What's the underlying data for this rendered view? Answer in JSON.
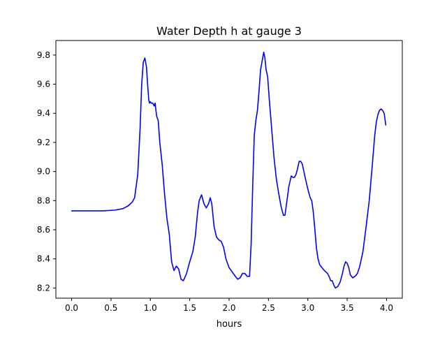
{
  "chart_data": {
    "type": "line",
    "title": "Water Depth h at gauge 3",
    "xlabel": "hours",
    "ylabel": "",
    "xlim": [
      -0.2,
      4.2
    ],
    "ylim": [
      8.13,
      9.9
    ],
    "x_ticks": [
      0.0,
      0.5,
      1.0,
      1.5,
      2.0,
      2.5,
      3.0,
      3.5,
      4.0
    ],
    "x_tick_labels": [
      "0.0",
      "0.5",
      "1.0",
      "1.5",
      "2.0",
      "2.5",
      "3.0",
      "3.5",
      "4.0"
    ],
    "y_ticks": [
      8.2,
      8.4,
      8.6,
      8.8,
      9.0,
      9.2,
      9.4,
      9.6,
      9.8
    ],
    "y_tick_labels": [
      "8.2",
      "8.4",
      "8.6",
      "8.8",
      "9.0",
      "9.2",
      "9.4",
      "9.6",
      "9.8"
    ],
    "grid": false,
    "line_color": "#0000ff",
    "series": [
      {
        "x": [
          0.0,
          0.2,
          0.4,
          0.55,
          0.65,
          0.72,
          0.77,
          0.8,
          0.84,
          0.87,
          0.89,
          0.91,
          0.93,
          0.95,
          0.965,
          0.98,
          0.99,
          1.0,
          1.01,
          1.03,
          1.05,
          1.06,
          1.08,
          1.1,
          1.12,
          1.15,
          1.18,
          1.21,
          1.24,
          1.27,
          1.3,
          1.33,
          1.36,
          1.39,
          1.42,
          1.46,
          1.5,
          1.54,
          1.57,
          1.6,
          1.62,
          1.65,
          1.68,
          1.71,
          1.74,
          1.76,
          1.78,
          1.81,
          1.84,
          1.87,
          1.9,
          1.93,
          1.96,
          2.0,
          2.04,
          2.08,
          2.11,
          2.14,
          2.17,
          2.2,
          2.23,
          2.26,
          2.28,
          2.3,
          2.32,
          2.34,
          2.36,
          2.38,
          2.4,
          2.42,
          2.44,
          2.455,
          2.47,
          2.49,
          2.51,
          2.54,
          2.57,
          2.6,
          2.63,
          2.66,
          2.69,
          2.71,
          2.73,
          2.76,
          2.79,
          2.81,
          2.83,
          2.85,
          2.87,
          2.89,
          2.91,
          2.93,
          2.95,
          2.97,
          3.0,
          3.03,
          3.05,
          3.07,
          3.09,
          3.11,
          3.13,
          3.15,
          3.18,
          3.21,
          3.23,
          3.25,
          3.27,
          3.29,
          3.31,
          3.33,
          3.35,
          3.38,
          3.41,
          3.44,
          3.46,
          3.48,
          3.5,
          3.52,
          3.54,
          3.57,
          3.6,
          3.63,
          3.66,
          3.7,
          3.74,
          3.78,
          3.82,
          3.85,
          3.87,
          3.89,
          3.91,
          3.93,
          3.95,
          3.97,
          3.99
        ],
        "y": [
          8.73,
          8.73,
          8.73,
          8.735,
          8.745,
          8.765,
          8.79,
          8.82,
          8.98,
          9.3,
          9.6,
          9.75,
          9.78,
          9.72,
          9.6,
          9.49,
          9.47,
          9.48,
          9.47,
          9.47,
          9.45,
          9.47,
          9.38,
          9.35,
          9.2,
          9.05,
          8.85,
          8.68,
          8.57,
          8.38,
          8.32,
          8.35,
          8.33,
          8.26,
          8.25,
          8.3,
          8.38,
          8.45,
          8.55,
          8.72,
          8.8,
          8.84,
          8.78,
          8.75,
          8.78,
          8.82,
          8.78,
          8.62,
          8.55,
          8.53,
          8.52,
          8.48,
          8.4,
          8.34,
          8.31,
          8.28,
          8.26,
          8.27,
          8.3,
          8.3,
          8.28,
          8.28,
          8.5,
          8.9,
          9.25,
          9.35,
          9.42,
          9.55,
          9.7,
          9.76,
          9.82,
          9.78,
          9.7,
          9.65,
          9.5,
          9.3,
          9.1,
          8.95,
          8.85,
          8.76,
          8.7,
          8.7,
          8.78,
          8.9,
          8.97,
          8.96,
          8.96,
          8.98,
          9.02,
          9.07,
          9.07,
          9.05,
          9.0,
          8.95,
          8.88,
          8.82,
          8.8,
          8.72,
          8.6,
          8.47,
          8.4,
          8.36,
          8.34,
          8.32,
          8.31,
          8.3,
          8.28,
          8.25,
          8.25,
          8.22,
          8.2,
          8.21,
          8.24,
          8.3,
          8.35,
          8.38,
          8.37,
          8.34,
          8.29,
          8.27,
          8.28,
          8.3,
          8.35,
          8.45,
          8.62,
          8.8,
          9.05,
          9.25,
          9.34,
          9.39,
          9.42,
          9.43,
          9.42,
          9.4,
          9.32
        ]
      }
    ]
  }
}
